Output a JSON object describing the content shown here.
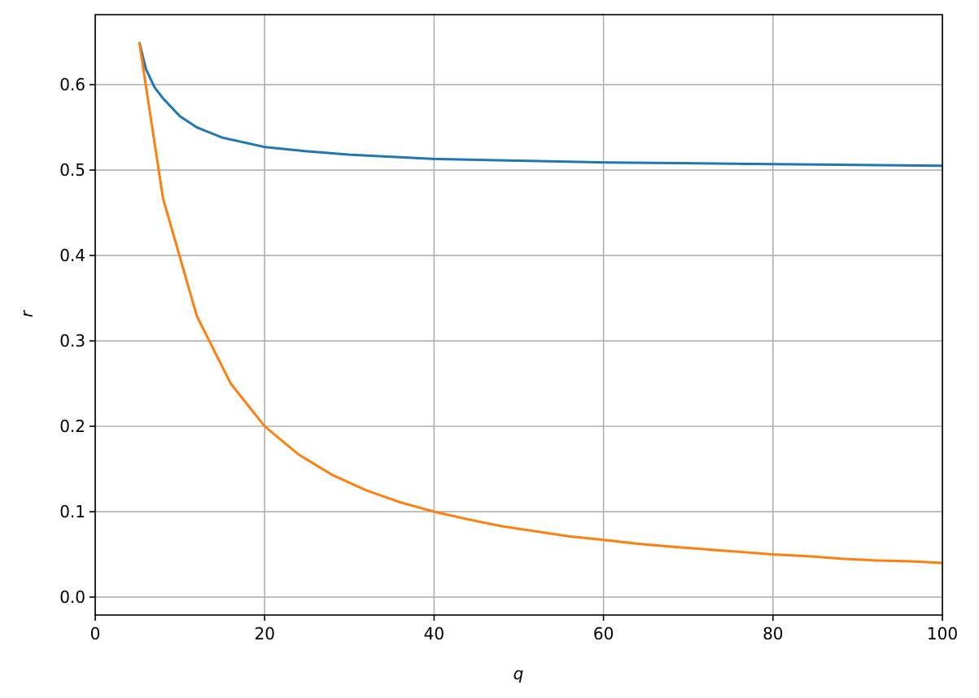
{
  "chart_data": {
    "type": "line",
    "x_label": "q",
    "y_label": "r",
    "xlim": [
      0,
      100
    ],
    "ylim": [
      -0.021,
      0.682
    ],
    "xticks": [
      0,
      20,
      40,
      60,
      80,
      100
    ],
    "yticks": [
      {
        "value": 0.0,
        "label": "0.0"
      },
      0.1,
      0.2,
      0.3,
      0.4,
      0.5,
      0.6
    ],
    "grid": true,
    "series": [
      {
        "color": "#1f77b4",
        "x": [
          5.2,
          6,
          7,
          8,
          10,
          12,
          15,
          20,
          25,
          30,
          40,
          50,
          60,
          70,
          80,
          90,
          100
        ],
        "values": [
          0.65,
          0.618,
          0.597,
          0.584,
          0.563,
          0.55,
          0.538,
          0.527,
          0.522,
          0.518,
          0.513,
          0.511,
          0.509,
          0.508,
          0.507,
          0.506,
          0.505
        ]
      },
      {
        "color": "#ff7f0e",
        "x": [
          5.2,
          8,
          12,
          16,
          20,
          24,
          28,
          32,
          36,
          40,
          44,
          48,
          52,
          56,
          60,
          64,
          68,
          72,
          76,
          80,
          84,
          88,
          92,
          96,
          100
        ],
        "values": [
          0.65,
          0.467,
          0.329,
          0.25,
          0.2,
          0.167,
          0.143,
          0.125,
          0.111,
          0.1,
          0.091,
          0.083,
          0.077,
          0.071,
          0.067,
          0.0625,
          0.059,
          0.056,
          0.053,
          0.05,
          0.048,
          0.045,
          0.043,
          0.042,
          0.04
        ]
      }
    ]
  }
}
